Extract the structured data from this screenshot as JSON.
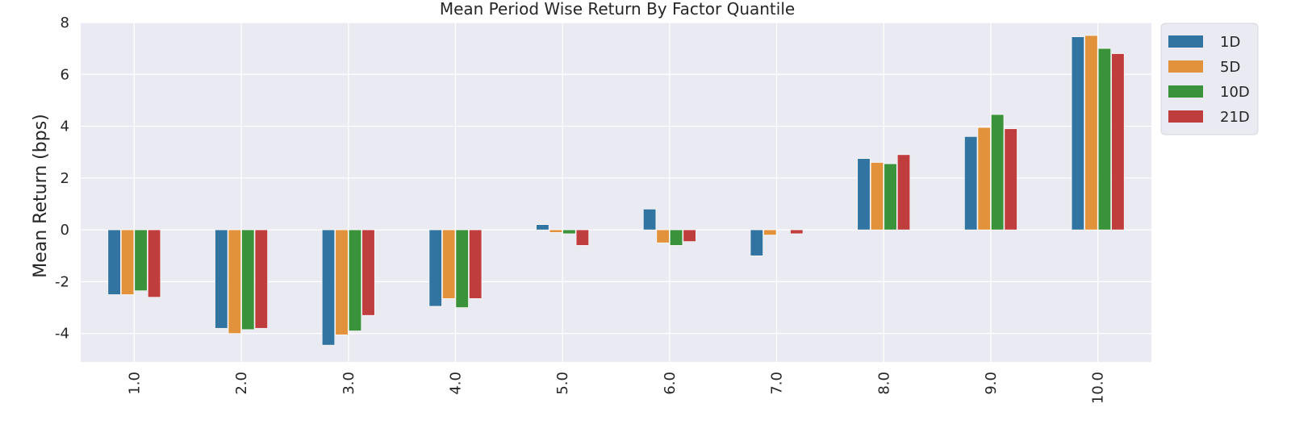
{
  "chart_data": {
    "type": "bar",
    "title": "Mean Period Wise Return By Factor Quantile",
    "xlabel": "",
    "ylabel": "Mean Return (bps)",
    "ylim": [
      -5.1,
      8.0
    ],
    "yticks": [
      8,
      6,
      4,
      2,
      0,
      -2,
      -4
    ],
    "ytick_labels": [
      "8",
      "6",
      "4",
      "2",
      "0",
      "-2",
      "-4"
    ],
    "categories": [
      "1.0",
      "2.0",
      "3.0",
      "4.0",
      "5.0",
      "6.0",
      "7.0",
      "8.0",
      "9.0",
      "10.0"
    ],
    "grid": true,
    "legend_position": "upper-right-outside",
    "series": [
      {
        "name": "1D",
        "color": "#3274a1",
        "values": [
          -2.5,
          -3.8,
          -4.45,
          -2.95,
          0.2,
          0.8,
          -1.0,
          2.75,
          3.6,
          7.45
        ]
      },
      {
        "name": "5D",
        "color": "#e1923a",
        "values": [
          -2.5,
          -4.0,
          -4.05,
          -2.65,
          -0.1,
          -0.5,
          -0.2,
          2.6,
          3.95,
          7.5
        ]
      },
      {
        "name": "10D",
        "color": "#3a923a",
        "values": [
          -2.35,
          -3.85,
          -3.9,
          -3.0,
          -0.15,
          -0.6,
          0.0,
          2.55,
          4.45,
          7.0
        ]
      },
      {
        "name": "21D",
        "color": "#c03d3e",
        "values": [
          -2.6,
          -3.8,
          -3.3,
          -2.65,
          -0.6,
          -0.45,
          -0.15,
          2.9,
          3.9,
          6.8
        ]
      }
    ]
  }
}
